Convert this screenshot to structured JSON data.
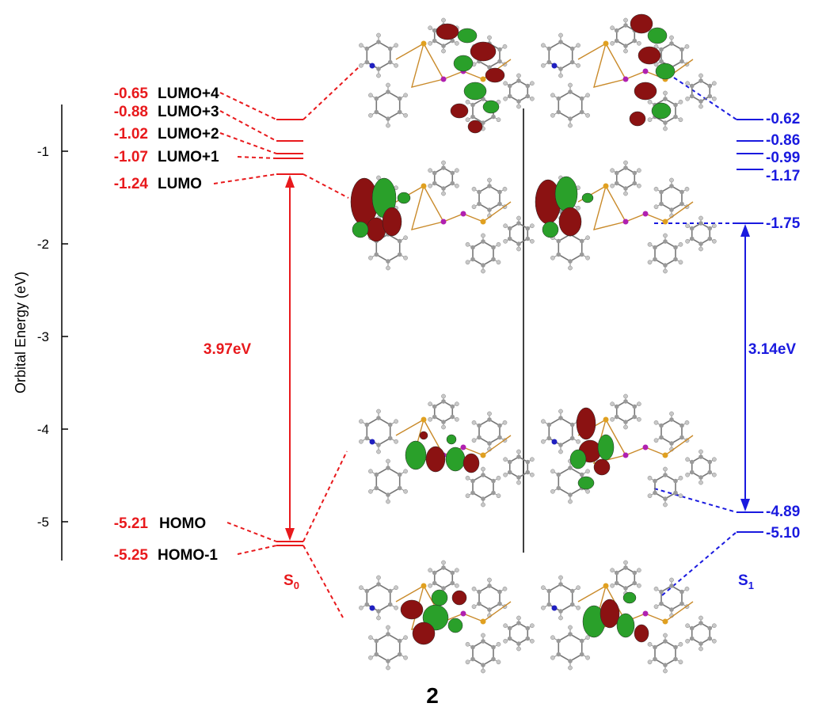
{
  "figure_label": "2",
  "axis": {
    "label": "Orbital Energy (eV)",
    "ticks": [
      "-1",
      "-2",
      "-3",
      "-4",
      "-5"
    ]
  },
  "s0": {
    "label_main": "S",
    "label_sub": "0",
    "gap_label": "3.97eV",
    "color": "#e8191c",
    "levels": [
      {
        "name": "LUMO+4",
        "value": "-0.65",
        "energy": -0.65
      },
      {
        "name": "LUMO+3",
        "value": "-0.88",
        "energy": -0.88
      },
      {
        "name": "LUMO+2",
        "value": "-1.02",
        "energy": -1.02
      },
      {
        "name": "LUMO+1",
        "value": "-1.07",
        "energy": -1.07
      },
      {
        "name": "LUMO",
        "value": "-1.24",
        "energy": -1.24
      },
      {
        "name": "HOMO",
        "value": "-5.21",
        "energy": -5.21
      },
      {
        "name": "HOMO-1",
        "value": "-5.25",
        "energy": -5.25
      }
    ]
  },
  "s1": {
    "label_main": "S",
    "label_sub": "1",
    "gap_label": "3.14eV",
    "color": "#1a1adf",
    "levels": [
      {
        "value": "-0.62",
        "energy": -0.62
      },
      {
        "value": "-0.86",
        "energy": -0.86
      },
      {
        "value": "-0.99",
        "energy": -0.99
      },
      {
        "value": "-1.17",
        "energy": -1.17
      },
      {
        "value": "-1.75",
        "energy": -1.75
      },
      {
        "value": "-4.89",
        "energy": -4.89
      },
      {
        "value": "-5.10",
        "energy": -5.1
      }
    ]
  },
  "colors": {
    "orbital_red": "#8b1212",
    "orbital_green": "#2aa02a",
    "bond": "#c98a2a",
    "atom": "#9a9a9a"
  }
}
